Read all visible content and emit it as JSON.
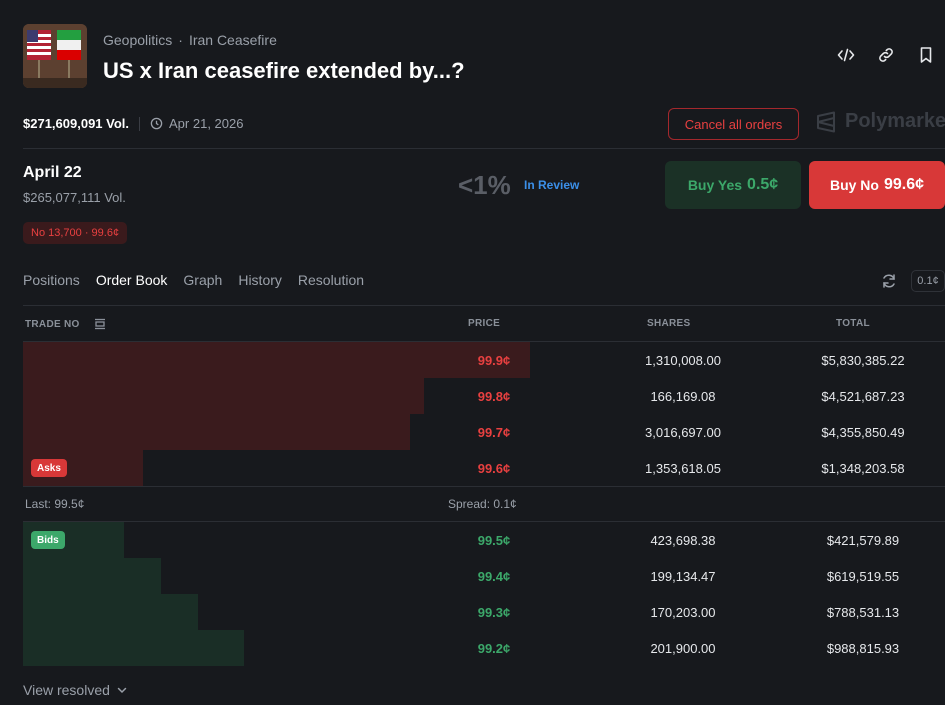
{
  "header": {
    "breadcrumb": [
      "Geopolitics",
      "Iran Ceasefire"
    ],
    "breadcrumb_sep": "·",
    "title": "US x Iran ceasefire extended by...?",
    "icons": [
      "embed-icon",
      "link-icon",
      "bookmark-icon"
    ]
  },
  "meta": {
    "volume": "$271,609,091 Vol.",
    "date": "Apr 21, 2026"
  },
  "actions": {
    "cancel_all": "Cancel all orders",
    "brand": "Polymarket"
  },
  "market": {
    "date": "April 22",
    "volume": "$265,077,111 Vol.",
    "position": "No 13,700 · 99.6¢",
    "probability": "<1%",
    "status": "In Review",
    "buy_yes_label": "Buy Yes",
    "buy_yes_price": "0.5¢",
    "buy_no_label": "Buy No",
    "buy_no_price": "99.6¢"
  },
  "tabs": [
    "Positions",
    "Order Book",
    "Graph",
    "History",
    "Resolution"
  ],
  "active_tab": "Order Book",
  "tick_size": "0.1¢",
  "orderbook": {
    "headers": {
      "trade": "TRADE NO",
      "price": "PRICE",
      "shares": "SHARES",
      "total": "TOTAL"
    },
    "asks_label": "Asks",
    "bids_label": "Bids",
    "asks": [
      {
        "price": "99.9¢",
        "shares": "1,310,008.00",
        "total": "$5,830,385.22",
        "depth": 0.55
      },
      {
        "price": "99.8¢",
        "shares": "166,169.08",
        "total": "$4,521,687.23",
        "depth": 0.435
      },
      {
        "price": "99.7¢",
        "shares": "3,016,697.00",
        "total": "$4,355,850.49",
        "depth": 0.42
      },
      {
        "price": "99.6¢",
        "shares": "1,353,618.05",
        "total": "$1,348,203.58",
        "depth": 0.13
      }
    ],
    "last": "Last: 99.5¢",
    "spread": "Spread: 0.1¢",
    "bids": [
      {
        "price": "99.5¢",
        "shares": "423,698.38",
        "total": "$421,579.89",
        "depth": 0.11
      },
      {
        "price": "99.4¢",
        "shares": "199,134.47",
        "total": "$619,519.55",
        "depth": 0.15
      },
      {
        "price": "99.3¢",
        "shares": "170,203.00",
        "total": "$788,531.13",
        "depth": 0.19
      },
      {
        "price": "99.2¢",
        "shares": "201,900.00",
        "total": "$988,815.93",
        "depth": 0.24
      }
    ]
  },
  "footer": {
    "view_resolved": "View resolved"
  },
  "colors": {
    "yes": "#3ca86a",
    "no": "#e84040",
    "bg": "#17191d"
  }
}
